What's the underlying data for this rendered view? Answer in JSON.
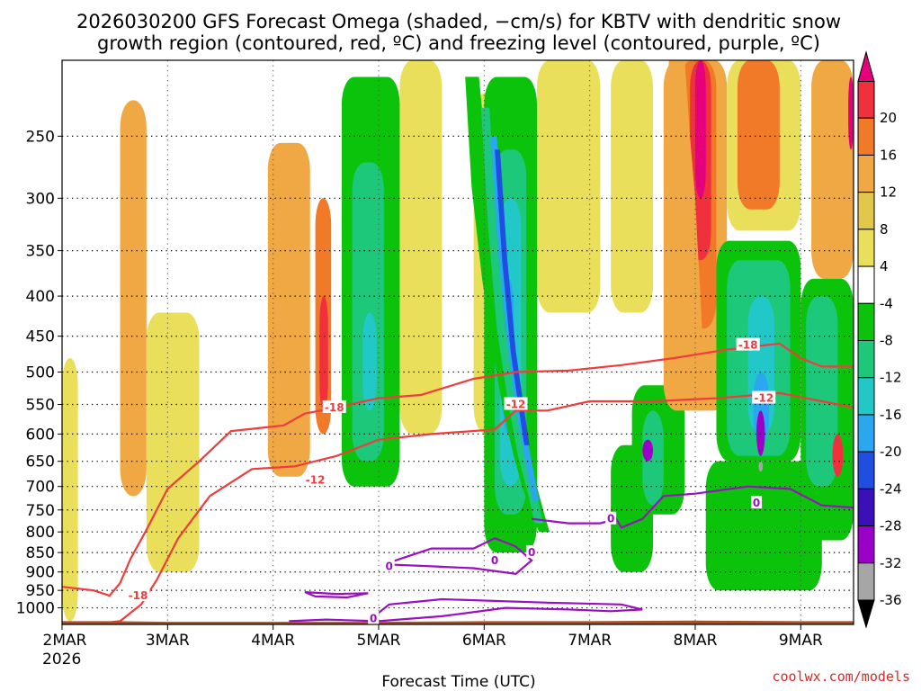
{
  "chart_data": {
    "type": "heatmap",
    "title_lines": [
      "2026030200 GFS Forecast Omega (shaded, −cm/s) for KBTV with dendritic snow",
      "growth region (contoured, red, ºC) and freezing level (contoured, purple, ºC)"
    ],
    "xlabel": "Forecast Time (UTC)",
    "ylabel": "",
    "x_tick_labels": [
      "2MAR",
      "3MAR",
      "4MAR",
      "5MAR",
      "6MAR",
      "7MAR",
      "8MAR",
      "9MAR"
    ],
    "x_first_sublabel": "2026",
    "x_range_days": [
      0,
      7.5
    ],
    "y_axis": "pressure (hPa), log scale, inverted",
    "y_range": [
      1050,
      200
    ],
    "y_tick_labels": [
      250,
      300,
      350,
      400,
      450,
      500,
      550,
      600,
      650,
      700,
      750,
      800,
      850,
      900,
      950,
      1000
    ],
    "colorbar_labels": [
      20,
      16,
      12,
      8,
      4,
      -4,
      -8,
      -12,
      -16,
      -20,
      -24,
      -28,
      -32,
      -36
    ],
    "colorbar_colors": [
      "#e5007c",
      "#f0303c",
      "#f07a28",
      "#f0a844",
      "#e2c84a",
      "#eadf5a",
      "#ffffff",
      "#0bc30b",
      "#1dc87a",
      "#22c8c8",
      "#2aa7ee",
      "#1f4fe0",
      "#3a10b8",
      "#9b00c8",
      "#a6a6a6",
      "#000000"
    ],
    "contour_labels_red": [
      "-18",
      "-18",
      "-18",
      "-12",
      "-12",
      "-12"
    ],
    "contour_labels_purple": [
      "0",
      "0",
      "0",
      "0",
      "0",
      "0"
    ],
    "red_contour_color": "#f03c3c",
    "purple_contour_color": "#9a10c0",
    "terrain_color": "#a0522d",
    "dsgr_minus12_hPa": [
      [
        0.0,
        1060
      ],
      [
        0.55,
        1040
      ],
      [
        0.75,
        990
      ],
      [
        0.9,
        920
      ],
      [
        1.1,
        815
      ],
      [
        1.4,
        720
      ],
      [
        1.8,
        665
      ],
      [
        2.2,
        660
      ],
      [
        2.6,
        640
      ],
      [
        3.0,
        610
      ],
      [
        3.5,
        600
      ],
      [
        4.1,
        592
      ],
      [
        4.3,
        560
      ],
      [
        4.6,
        560
      ],
      [
        5.0,
        545
      ],
      [
        5.6,
        545
      ],
      [
        6.2,
        540
      ],
      [
        6.8,
        532
      ],
      [
        7.2,
        545
      ],
      [
        7.5,
        555
      ]
    ],
    "dsgr_minus18_hPa": [
      [
        0.0,
        940
      ],
      [
        0.3,
        950
      ],
      [
        0.45,
        965
      ],
      [
        0.55,
        930
      ],
      [
        0.65,
        865
      ],
      [
        0.8,
        795
      ],
      [
        1.0,
        705
      ],
      [
        1.3,
        650
      ],
      [
        1.6,
        595
      ],
      [
        1.85,
        590
      ],
      [
        2.1,
        585
      ],
      [
        2.3,
        565
      ],
      [
        2.6,
        555
      ],
      [
        3.0,
        540
      ],
      [
        3.4,
        535
      ],
      [
        3.9,
        510
      ],
      [
        4.3,
        500
      ],
      [
        4.8,
        498
      ],
      [
        5.3,
        490
      ],
      [
        5.8,
        480
      ],
      [
        6.3,
        468
      ],
      [
        6.8,
        460
      ],
      [
        7.0,
        480
      ],
      [
        7.2,
        492
      ],
      [
        7.5,
        492
      ]
    ],
    "freezing_level_segments_hPa": [
      [
        [
          2.3,
          955
        ],
        [
          2.6,
          960
        ],
        [
          2.9,
          958
        ],
        [
          2.7,
          970
        ],
        [
          2.4,
          967
        ],
        [
          2.3,
          955
        ]
      ],
      [
        [
          2.15,
          1040
        ],
        [
          2.5,
          1035
        ],
        [
          3.0,
          1040
        ],
        [
          3.6,
          1025
        ],
        [
          4.2,
          1000
        ],
        [
          4.8,
          1005
        ],
        [
          5.2,
          1010
        ],
        [
          5.5,
          1005
        ],
        [
          5.3,
          990
        ],
        [
          4.6,
          985
        ],
        [
          3.6,
          975
        ],
        [
          3.1,
          990
        ],
        [
          2.9,
          1040
        ]
      ],
      [
        [
          3.05,
          880
        ],
        [
          3.5,
          840
        ],
        [
          3.9,
          840
        ],
        [
          4.1,
          815
        ],
        [
          4.3,
          835
        ],
        [
          4.45,
          870
        ],
        [
          4.3,
          905
        ],
        [
          3.9,
          890
        ],
        [
          3.5,
          885
        ],
        [
          3.05,
          880
        ]
      ],
      [
        [
          4.45,
          770
        ],
        [
          4.8,
          780
        ],
        [
          5.1,
          780
        ],
        [
          5.25,
          770
        ],
        [
          5.3,
          790
        ],
        [
          5.5,
          770
        ],
        [
          5.7,
          720
        ],
        [
          6.0,
          715
        ],
        [
          6.5,
          700
        ],
        [
          6.9,
          705
        ],
        [
          7.2,
          740
        ],
        [
          7.5,
          745
        ]
      ]
    ],
    "omega_cells": [
      {
        "c": "#eadf5a",
        "x": [
          0.0,
          0.15
        ],
        "p": [
          480,
          1040
        ]
      },
      {
        "c": "#f0a844",
        "x": [
          0.55,
          0.8
        ],
        "p": [
          225,
          720
        ]
      },
      {
        "c": "#eadf5a",
        "x": [
          0.8,
          1.3
        ],
        "p": [
          420,
          900
        ]
      },
      {
        "c": "#f0a844",
        "x": [
          1.95,
          2.35
        ],
        "p": [
          255,
          680
        ]
      },
      {
        "c": "#f07a28",
        "x": [
          2.4,
          2.55
        ],
        "p": [
          300,
          600
        ]
      },
      {
        "c": "#f0303c",
        "x": [
          2.44,
          2.52
        ],
        "p": [
          400,
          560
        ]
      },
      {
        "c": "#0bc30b",
        "x": [
          2.65,
          3.2
        ],
        "p": [
          210,
          700
        ]
      },
      {
        "c": "#1dc87a",
        "x": [
          2.75,
          3.05
        ],
        "p": [
          270,
          650
        ]
      },
      {
        "c": "#22c8c8",
        "x": [
          2.85,
          2.98
        ],
        "p": [
          420,
          560
        ]
      },
      {
        "c": "#eadf5a",
        "x": [
          3.2,
          3.6
        ],
        "p": [
          200,
          600
        ]
      },
      {
        "c": "#eadf5a",
        "x": [
          3.9,
          4.3
        ],
        "p": [
          220,
          600
        ]
      },
      {
        "c": "#0bc30b",
        "x": [
          4.0,
          4.5
        ],
        "p": [
          210,
          850
        ]
      },
      {
        "c": "#1dc87a",
        "x": [
          4.1,
          4.4
        ],
        "p": [
          260,
          760
        ]
      },
      {
        "c": "#22c8c8",
        "x": [
          4.15,
          4.35
        ],
        "p": [
          300,
          700
        ]
      },
      {
        "c": "#2aa7ee",
        "x": [
          4.18,
          4.28
        ],
        "p": [
          380,
          600
        ]
      },
      {
        "c": "#eadf5a",
        "x": [
          4.5,
          5.1
        ],
        "p": [
          200,
          420
        ]
      },
      {
        "c": "#0bc30b",
        "x": [
          5.2,
          5.6
        ],
        "p": [
          620,
          900
        ]
      },
      {
        "c": "#0bc30b",
        "x": [
          5.4,
          5.9
        ],
        "p": [
          520,
          760
        ]
      },
      {
        "c": "#1dc87a",
        "x": [
          5.5,
          5.7
        ],
        "p": [
          560,
          740
        ]
      },
      {
        "c": "#9b00c8",
        "x": [
          5.5,
          5.6
        ],
        "p": [
          610,
          650
        ]
      },
      {
        "c": "#eadf5a",
        "x": [
          5.2,
          5.6
        ],
        "p": [
          200,
          420
        ]
      },
      {
        "c": "#f0a844",
        "x": [
          5.7,
          6.3
        ],
        "p": [
          200,
          560
        ]
      },
      {
        "c": "#f07a28",
        "x": [
          5.85,
          6.2
        ],
        "p": [
          200,
          440
        ]
      },
      {
        "c": "#f0303c",
        "x": [
          5.95,
          6.15
        ],
        "p": [
          200,
          360
        ]
      },
      {
        "c": "#e5007c",
        "x": [
          6.0,
          6.1
        ],
        "p": [
          200,
          300
        ]
      },
      {
        "c": "#eadf5a",
        "x": [
          6.3,
          7.0
        ],
        "p": [
          200,
          330
        ]
      },
      {
        "c": "#f07a28",
        "x": [
          6.4,
          6.8
        ],
        "p": [
          200,
          310
        ]
      },
      {
        "c": "#0bc30b",
        "x": [
          6.1,
          7.2
        ],
        "p": [
          650,
          950
        ]
      },
      {
        "c": "#0bc30b",
        "x": [
          6.2,
          7.0
        ],
        "p": [
          340,
          650
        ]
      },
      {
        "c": "#1dc87a",
        "x": [
          6.3,
          6.9
        ],
        "p": [
          360,
          640
        ]
      },
      {
        "c": "#22c8c8",
        "x": [
          6.5,
          6.75
        ],
        "p": [
          400,
          600
        ]
      },
      {
        "c": "#2aa7ee",
        "x": [
          6.55,
          6.7
        ],
        "p": [
          500,
          620
        ]
      },
      {
        "c": "#9b00c8",
        "x": [
          6.58,
          6.66
        ],
        "p": [
          560,
          640
        ]
      },
      {
        "c": "#a6a6a6",
        "x": [
          6.6,
          6.64
        ],
        "p": [
          650,
          670
        ]
      },
      {
        "c": "#f0a844",
        "x": [
          7.1,
          7.5
        ],
        "p": [
          200,
          380
        ]
      },
      {
        "c": "#0bc30b",
        "x": [
          7.0,
          7.5
        ],
        "p": [
          380,
          820
        ]
      },
      {
        "c": "#1dc87a",
        "x": [
          7.05,
          7.35
        ],
        "p": [
          400,
          700
        ]
      },
      {
        "c": "#f0303c",
        "x": [
          7.3,
          7.4
        ],
        "p": [
          600,
          680
        ]
      },
      {
        "c": "#e5007c",
        "x": [
          7.45,
          7.5
        ],
        "p": [
          210,
          260
        ]
      }
    ],
    "omega_curves": [
      {
        "c": "#0bc30b",
        "pts": [
          [
            3.95,
            210
          ],
          [
            4.05,
            290
          ],
          [
            4.15,
            380
          ],
          [
            4.25,
            470
          ],
          [
            4.33,
            560
          ],
          [
            4.42,
            640
          ],
          [
            4.5,
            700
          ],
          [
            4.57,
            760
          ],
          [
            4.62,
            800
          ],
          [
            4.52,
            800
          ],
          [
            4.45,
            760
          ],
          [
            4.36,
            700
          ],
          [
            4.28,
            640
          ],
          [
            4.18,
            560
          ],
          [
            4.08,
            470
          ],
          [
            3.98,
            380
          ],
          [
            3.88,
            290
          ],
          [
            3.82,
            210
          ]
        ]
      },
      {
        "c": "#1dc87a",
        "pts": [
          [
            4.05,
            230
          ],
          [
            4.12,
            330
          ],
          [
            4.2,
            440
          ],
          [
            4.3,
            540
          ],
          [
            4.4,
            640
          ],
          [
            4.5,
            720
          ],
          [
            4.56,
            780
          ],
          [
            4.48,
            780
          ],
          [
            4.42,
            720
          ],
          [
            4.32,
            640
          ],
          [
            4.22,
            540
          ],
          [
            4.12,
            440
          ],
          [
            4.04,
            330
          ],
          [
            3.97,
            230
          ]
        ]
      },
      {
        "c": "#2aa7ee",
        "pts": [
          [
            4.12,
            250
          ],
          [
            4.19,
            350
          ],
          [
            4.27,
            450
          ],
          [
            4.36,
            560
          ],
          [
            4.45,
            650
          ],
          [
            4.52,
            730
          ],
          [
            4.46,
            730
          ],
          [
            4.39,
            650
          ],
          [
            4.3,
            560
          ],
          [
            4.21,
            450
          ],
          [
            4.13,
            350
          ],
          [
            4.06,
            250
          ]
        ]
      },
      {
        "c": "#1f4fe0",
        "pts": [
          [
            4.15,
            260
          ],
          [
            4.22,
            360
          ],
          [
            4.3,
            470
          ],
          [
            4.38,
            560
          ],
          [
            4.43,
            620
          ],
          [
            4.38,
            620
          ],
          [
            4.33,
            560
          ],
          [
            4.25,
            470
          ],
          [
            4.17,
            360
          ],
          [
            4.1,
            260
          ]
        ]
      },
      {
        "c": "#f0a844",
        "pts": [
          [
            5.9,
            200
          ],
          [
            5.95,
            250
          ],
          [
            6.0,
            300
          ],
          [
            6.02,
            340
          ],
          [
            6.05,
            400
          ],
          [
            6.08,
            500
          ],
          [
            6.05,
            560
          ],
          [
            5.9,
            560
          ],
          [
            5.82,
            500
          ],
          [
            5.78,
            400
          ],
          [
            5.75,
            340
          ],
          [
            5.72,
            300
          ],
          [
            5.72,
            250
          ],
          [
            5.75,
            200
          ]
        ]
      }
    ],
    "terrain_hPa": [
      [
        0.0,
        1040
      ],
      [
        0.5,
        1040
      ],
      [
        1.0,
        1042
      ],
      [
        2.0,
        1042
      ],
      [
        3.0,
        1042
      ],
      [
        4.0,
        1040
      ],
      [
        5.0,
        1040
      ],
      [
        6.0,
        1038
      ],
      [
        7.0,
        1040
      ],
      [
        7.5,
        1040
      ]
    ]
  },
  "credit": "coolwx.com/models"
}
